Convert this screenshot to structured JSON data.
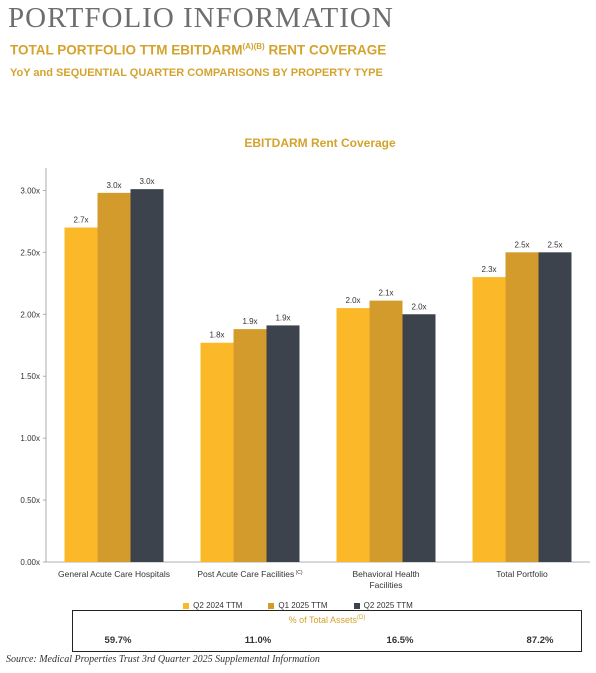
{
  "header": {
    "title": "PORTFOLIO INFORMATION",
    "subtitle_main": "TOTAL PORTFOLIO TTM EBITDARM",
    "subtitle_sup": "(A)(B)",
    "subtitle_end": " RENT COVERAGE",
    "subtitle2": "YoY and SEQUENTIAL QUARTER COMPARISONS BY PROPERTY TYPE"
  },
  "chart_data": {
    "type": "bar",
    "title": "EBITDARM Rent Coverage",
    "categories": [
      "General Acute Care Hospitals",
      "Post Acute Care Facilities",
      "Behavioral Health Facilities",
      "Total Portfolio"
    ],
    "category_lines": [
      [
        "General Acute Care Hospitals"
      ],
      [
        "Post Acute Care Facilities"
      ],
      [
        "Behavioral Health",
        "Facilities"
      ],
      [
        "Total Portfolio"
      ]
    ],
    "category_sup": [
      "",
      "(C)",
      "",
      ""
    ],
    "series": [
      {
        "name": "Q2 2024 TTM",
        "color": "#fbb829",
        "values": [
          2.7,
          1.77,
          2.05,
          2.3
        ],
        "labels": [
          "2.7x",
          "1.8x",
          "2.0x",
          "2.3x"
        ]
      },
      {
        "name": "Q1 2025 TTM",
        "color": "#d39b2c",
        "values": [
          2.98,
          1.88,
          2.11,
          2.5
        ],
        "labels": [
          "3.0x",
          "1.9x",
          "2.1x",
          "2.5x"
        ]
      },
      {
        "name": "Q2 2025 TTM",
        "color": "#3d434c",
        "values": [
          3.01,
          1.91,
          2.0,
          2.5
        ],
        "labels": [
          "3.0x",
          "1.9x",
          "2.0x",
          "2.5x"
        ]
      }
    ],
    "yticks": [
      0,
      0.5,
      1.0,
      1.5,
      2.0,
      2.5,
      3.0
    ],
    "ytick_labels": [
      "0.00x",
      "0.50x",
      "1.00x",
      "1.50x",
      "2.00x",
      "2.50x",
      "3.00x"
    ],
    "ylim": [
      0,
      3.1
    ],
    "grid": false,
    "legend": "bottom"
  },
  "assets": {
    "title": "% of Total Assets",
    "title_sup": "(D)",
    "values": [
      "59.7%",
      "11.0%",
      "16.5%",
      "87.2%"
    ]
  },
  "source": "Source: Medical Properties Trust 3rd Quarter 2025 Supplemental Information"
}
